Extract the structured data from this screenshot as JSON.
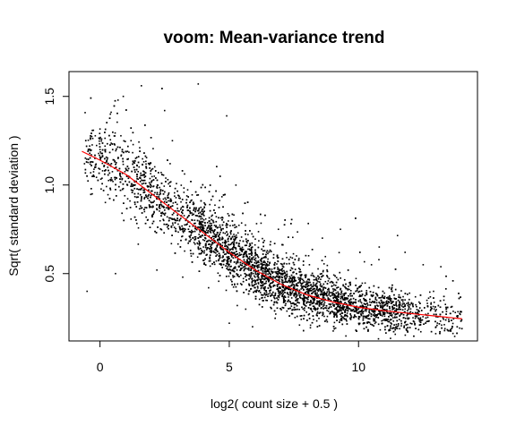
{
  "chart_data": {
    "type": "scatter",
    "title": "voom: Mean-variance trend",
    "xlabel": "log2( count size + 0.5 )",
    "ylabel": "Sqrt( standard deviation )",
    "xlim": [
      -1.2,
      14.6
    ],
    "ylim": [
      0.12,
      1.64
    ],
    "x_ticks": [
      0,
      5,
      10
    ],
    "x_tick_labels": [
      "0",
      "5",
      "10"
    ],
    "y_ticks": [
      0.5,
      1.0,
      1.5
    ],
    "y_tick_labels": [
      "0.5",
      "1.0",
      "1.5"
    ],
    "grid": false,
    "legend": "none",
    "point_color": "#000000",
    "trend_color": "#ff0000",
    "series": [
      {
        "type": "line",
        "x": [
          -0.7,
          0,
          1,
          2,
          3,
          4,
          5,
          6,
          7,
          8,
          9,
          10,
          11,
          12,
          13,
          14
        ],
        "y": [
          1.19,
          1.14,
          1.06,
          0.95,
          0.84,
          0.73,
          0.62,
          0.52,
          0.44,
          0.38,
          0.34,
          0.31,
          0.29,
          0.275,
          0.26,
          0.245
        ]
      },
      {
        "type": "scatter",
        "x": [
          -0.5,
          -0.4,
          -0.3,
          -0.6,
          -0.2,
          0.0,
          0.1,
          0.3,
          0.5,
          0.7,
          0.9,
          1.1,
          1.3,
          1.6,
          2.0,
          2.3,
          2.6,
          3.0,
          3.3,
          3.6,
          4.0,
          4.3,
          4.6,
          5.0,
          5.3,
          5.6,
          6.0,
          6.3,
          6.6,
          7.0,
          7.3,
          7.6,
          8.0,
          8.3,
          8.6,
          9.0,
          9.3,
          9.6,
          10.0,
          10.3,
          10.6,
          11.0,
          11.4,
          11.8,
          12.2,
          12.6,
          13.0,
          13.4,
          13.8,
          1.6,
          2.5,
          3.8,
          4.9,
          6.9,
          8.6,
          9.3,
          10.5,
          11.8,
          12.5,
          0.9,
          0.4,
          1.2,
          2.8,
          3.2,
          5.0,
          5.9,
          6.6,
          7.6,
          8.1,
          8.9,
          9.7,
          10.8,
          11.3,
          12.9,
          13.3,
          -0.5,
          0.6,
          2.2,
          4.2
        ],
        "y": [
          1.05,
          1.22,
          0.95,
          1.12,
          1.15,
          1.2,
          1.08,
          1.1,
          1.02,
          1.15,
          0.98,
          1.05,
          1.0,
          0.92,
          0.9,
          0.88,
          0.82,
          0.8,
          0.75,
          0.7,
          0.65,
          0.62,
          0.58,
          0.55,
          0.52,
          0.5,
          0.48,
          0.45,
          0.42,
          0.4,
          0.38,
          0.37,
          0.36,
          0.35,
          0.34,
          0.33,
          0.32,
          0.31,
          0.3,
          0.3,
          0.29,
          0.28,
          0.29,
          0.3,
          0.28,
          0.27,
          0.27,
          0.3,
          0.26,
          1.56,
          1.42,
          1.57,
          1.39,
          0.75,
          0.7,
          0.75,
          0.55,
          0.62,
          0.55,
          1.5,
          1.4,
          1.25,
          1.25,
          0.48,
          0.22,
          0.2,
          0.68,
          0.6,
          0.55,
          0.45,
          0.25,
          0.65,
          0.4,
          0.4,
          0.35,
          0.4,
          0.5,
          0.52,
          0.42
        ]
      }
    ]
  }
}
